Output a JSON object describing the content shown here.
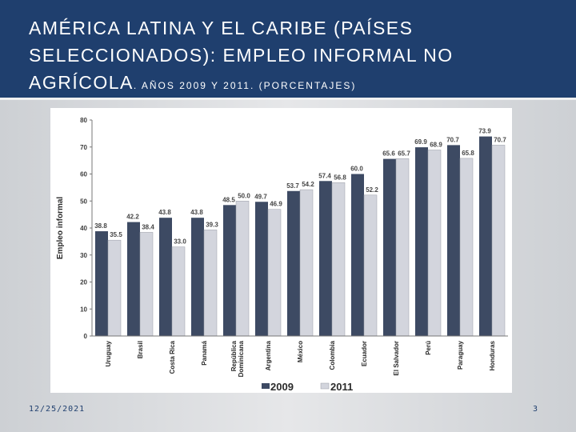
{
  "slide": {
    "title_main": "AMÉRICA LATINA Y EL CARIBE (PAÍSES SELECCIONADOS): EMPLEO INFORMAL NO AGRÍCOLA",
    "title_suffix": ". AÑOS 2009 Y 2011. (PORCENTAJES)",
    "date": "12/25/2021",
    "page_number": "3"
  },
  "colors": {
    "title_bar": "#1f3f6e",
    "series_2009": "#3d4a63",
    "series_2011": "#d3d5dd"
  },
  "chart_data": {
    "type": "bar",
    "title": "",
    "xlabel": "",
    "ylabel": "Empleo informal",
    "ylim": [
      0,
      80
    ],
    "yticks": [
      0,
      10,
      20,
      30,
      40,
      50,
      60,
      70,
      80
    ],
    "grid": false,
    "legend_position": "bottom",
    "categories": [
      "Uruguay",
      "Brasil",
      "Costa Rica",
      "Panamá",
      "República Dominicana",
      "Argentina",
      "México",
      "Colombia",
      "Ecuador",
      "El Salvador",
      "Perú",
      "Paraguay",
      "Honduras"
    ],
    "series": [
      {
        "name": "2009",
        "values": [
          38.8,
          42.2,
          43.8,
          43.8,
          48.5,
          49.7,
          53.7,
          57.4,
          60.0,
          65.6,
          69.9,
          70.7,
          73.9
        ],
        "labels": [
          "38.8",
          "42.2",
          "43.8",
          "43.8",
          "48.5",
          "49.7",
          "53.7",
          "57.4",
          "60.0",
          "65.6",
          "69.9",
          "70.7",
          "73.9"
        ]
      },
      {
        "name": "2011",
        "values": [
          35.5,
          38.4,
          33.0,
          39.3,
          50.0,
          46.9,
          54.2,
          56.8,
          52.2,
          65.7,
          68.9,
          65.8,
          70.7
        ],
        "labels": [
          "35.5",
          "38.4",
          "33.0",
          "39.3",
          "50.0",
          "46.9",
          "54.2",
          "56.8",
          "52.2",
          "65.7",
          "68.9",
          "65.8",
          "70.7"
        ]
      }
    ]
  }
}
